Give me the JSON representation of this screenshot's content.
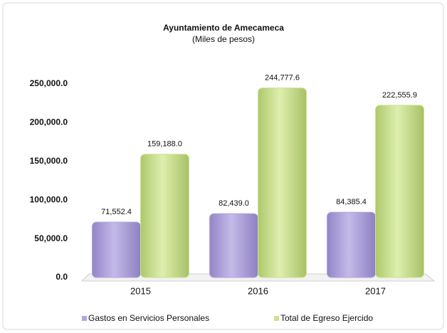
{
  "chart_data": {
    "type": "bar",
    "title": "Ayuntamiento de Amecameca",
    "subtitle": "(Miles de pesos)",
    "categories": [
      "2015",
      "2016",
      "2017"
    ],
    "series": [
      {
        "name": "Gastos en Servicios Personales",
        "color": "#b3a7de",
        "values": [
          71552.4,
          82439.0,
          84385.4
        ],
        "value_labels": [
          "71,552.4",
          "82,439.0",
          "84,385.4"
        ]
      },
      {
        "name": "Total de Egreso Ejercido",
        "color": "#cde391",
        "values": [
          159188.0,
          244777.6,
          222555.9
        ],
        "value_labels": [
          "159,188.0",
          "244,777.6",
          "222,555.9"
        ]
      }
    ],
    "ylim": [
      0,
      250000
    ],
    "yticks": [
      {
        "value": 0,
        "label": "0.0"
      },
      {
        "value": 50000,
        "label": "50,000.0"
      },
      {
        "value": 100000,
        "label": "100,000.0"
      },
      {
        "value": 150000,
        "label": "150,000.0"
      },
      {
        "value": 200000,
        "label": "200,000.0"
      },
      {
        "value": 250000,
        "label": "250,000.0"
      }
    ],
    "legend": "bottom"
  }
}
